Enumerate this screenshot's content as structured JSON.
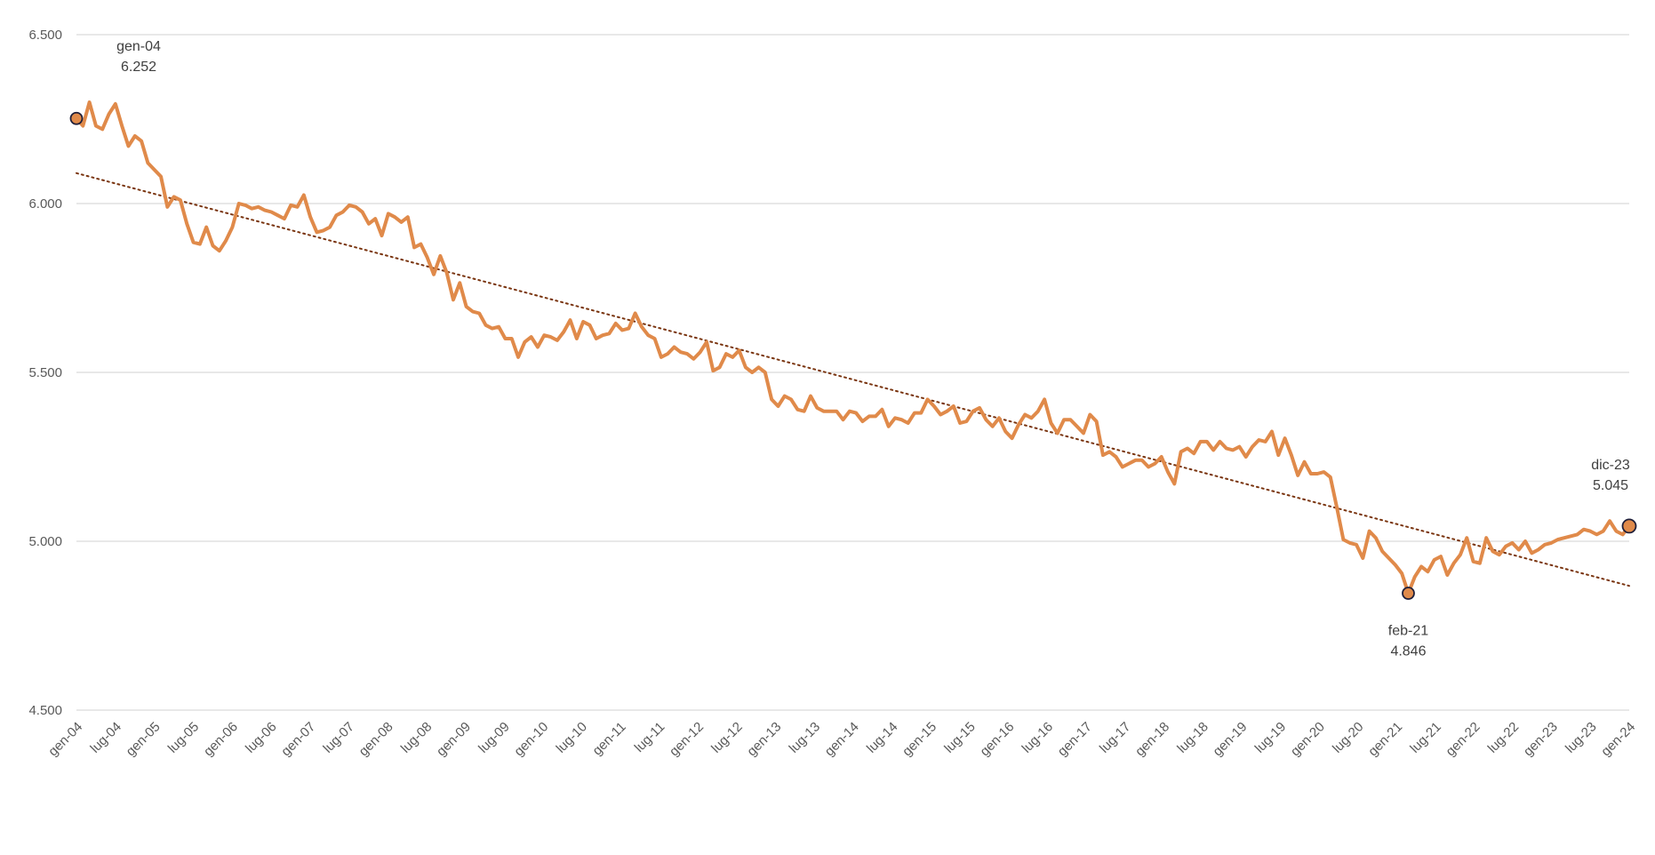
{
  "chart_data": {
    "type": "line",
    "title": "",
    "xlabel": "",
    "ylabel": "",
    "ylim": [
      4500,
      6500
    ],
    "yticks": [
      {
        "value": 4500,
        "label": "4.500"
      },
      {
        "value": 5000,
        "label": "5.000"
      },
      {
        "value": 5500,
        "label": "5.500"
      },
      {
        "value": 6000,
        "label": "6.000"
      },
      {
        "value": 6500,
        "label": "6.500"
      }
    ],
    "grid": "horizontal",
    "legend": "none",
    "x_start": "gen-04",
    "x_end": "gen-24",
    "xticks": [
      "gen-04",
      "lug-04",
      "gen-05",
      "lug-05",
      "gen-06",
      "lug-06",
      "gen-07",
      "lug-07",
      "gen-08",
      "lug-08",
      "gen-09",
      "lug-09",
      "gen-10",
      "lug-10",
      "gen-11",
      "lug-11",
      "gen-12",
      "lug-12",
      "gen-13",
      "lug-13",
      "gen-14",
      "lug-14",
      "gen-15",
      "lug-15",
      "gen-16",
      "lug-16",
      "gen-17",
      "lug-17",
      "gen-18",
      "lug-18",
      "gen-19",
      "lug-19",
      "gen-20",
      "lug-20",
      "gen-21",
      "lug-21",
      "gen-22",
      "lug-22",
      "gen-23",
      "lug-23",
      "gen-24"
    ],
    "series": [
      {
        "color": "#e08a4a",
        "values": [
          6252,
          6230,
          6300,
          6230,
          6220,
          6265,
          6295,
          6230,
          6170,
          6200,
          6185,
          6120,
          6100,
          6080,
          5990,
          6020,
          6010,
          5940,
          5885,
          5880,
          5930,
          5875,
          5860,
          5890,
          5930,
          6000,
          5995,
          5985,
          5990,
          5980,
          5975,
          5965,
          5955,
          5995,
          5990,
          6025,
          5960,
          5915,
          5920,
          5930,
          5965,
          5975,
          5995,
          5990,
          5975,
          5940,
          5955,
          5905,
          5970,
          5960,
          5945,
          5960,
          5870,
          5880,
          5840,
          5790,
          5845,
          5795,
          5715,
          5765,
          5695,
          5680,
          5675,
          5640,
          5630,
          5635,
          5600,
          5600,
          5545,
          5590,
          5605,
          5575,
          5610,
          5605,
          5595,
          5620,
          5655,
          5600,
          5650,
          5640,
          5600,
          5610,
          5615,
          5645,
          5625,
          5630,
          5675,
          5635,
          5610,
          5600,
          5545,
          5555,
          5575,
          5560,
          5555,
          5540,
          5560,
          5590,
          5505,
          5515,
          5555,
          5545,
          5565,
          5515,
          5500,
          5515,
          5500,
          5420,
          5400,
          5430,
          5420,
          5390,
          5385,
          5430,
          5395,
          5385,
          5385,
          5385,
          5360,
          5385,
          5380,
          5355,
          5370,
          5370,
          5390,
          5340,
          5365,
          5360,
          5350,
          5380,
          5380,
          5420,
          5400,
          5375,
          5385,
          5400,
          5350,
          5355,
          5385,
          5395,
          5360,
          5340,
          5365,
          5325,
          5305,
          5345,
          5375,
          5365,
          5385,
          5420,
          5350,
          5320,
          5360,
          5360,
          5340,
          5320,
          5375,
          5355,
          5255,
          5265,
          5250,
          5220,
          5230,
          5240,
          5240,
          5220,
          5230,
          5250,
          5205,
          5170,
          5265,
          5275,
          5260,
          5295,
          5295,
          5270,
          5295,
          5275,
          5270,
          5280,
          5250,
          5280,
          5300,
          5295,
          5325,
          5255,
          5305,
          5255,
          5195,
          5235,
          5200,
          5200,
          5205,
          5190,
          5100,
          5005,
          4995,
          4990,
          4950,
          5030,
          5010,
          4970,
          4950,
          4930,
          4905,
          4846,
          4895,
          4925,
          4910,
          4945,
          4955,
          4900,
          4935,
          4960,
          5010,
          4940,
          4935,
          5010,
          4970,
          4960,
          4985,
          4995,
          4975,
          5000,
          4965,
          4975,
          4990,
          4995,
          5005,
          5010,
          5015,
          5020,
          5035,
          5030,
          5020,
          5030,
          5060,
          5030,
          5020,
          5045
        ]
      }
    ],
    "trendline": {
      "style": "dotted",
      "color": "#7a3510",
      "start": 6090,
      "end": 4868
    },
    "annotations": [
      {
        "date": "gen-04",
        "label": "gen-04",
        "value_label": "6.252",
        "value": 6252,
        "index": 0,
        "position": "above"
      },
      {
        "date": "feb-21",
        "label": "feb-21",
        "value_label": "4.846",
        "value": 4846,
        "index": 205,
        "position": "below"
      },
      {
        "date": "dic-23",
        "label": "dic-23",
        "value_label": "5.045",
        "value": 5045,
        "index": 239,
        "position": "above"
      }
    ]
  }
}
